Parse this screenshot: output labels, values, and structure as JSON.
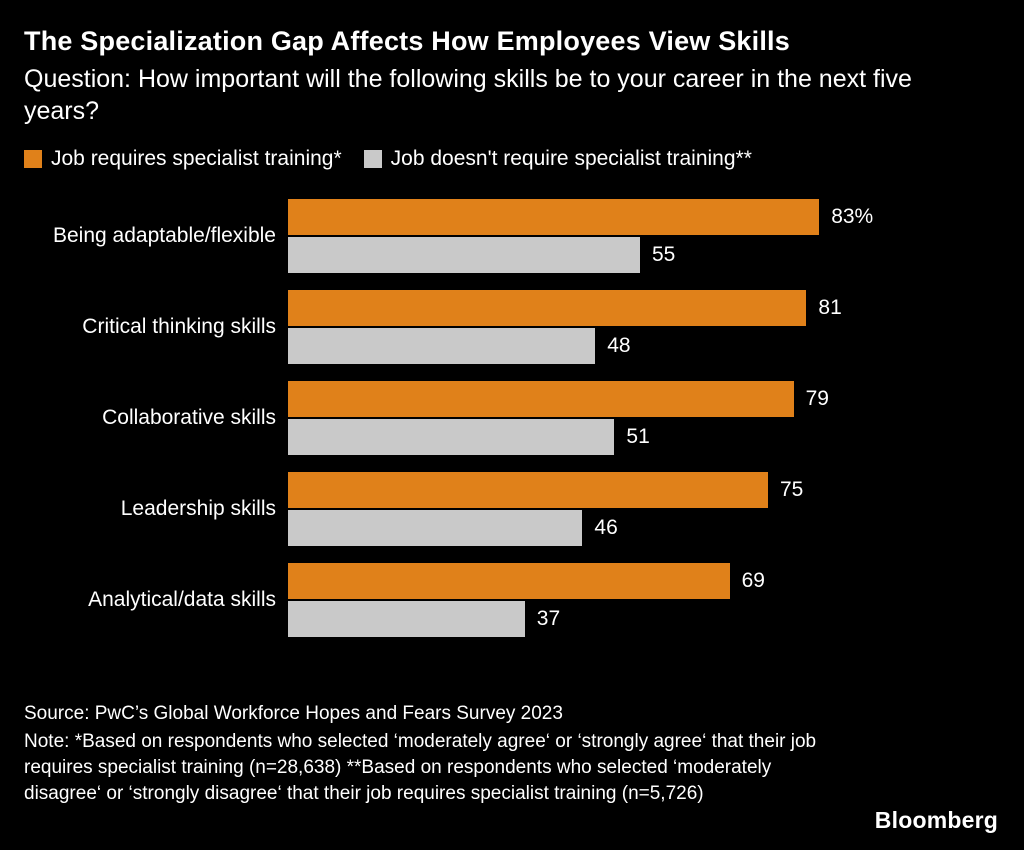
{
  "header": {
    "title": "The Specialization Gap Affects How Employees View Skills",
    "subtitle": "Question: How important will the following skills be to your career in the next five years?"
  },
  "legend": [
    {
      "label": "Job requires specialist training*",
      "color": "#E0811A"
    },
    {
      "label": "Job doesn't require specialist training**",
      "color": "#C9C9C9"
    }
  ],
  "chart_data": {
    "type": "bar",
    "orientation": "horizontal",
    "title": "The Specialization Gap Affects How Employees View Skills",
    "categories": [
      "Being adaptable/flexible",
      "Critical thinking skills",
      "Collaborative skills",
      "Leadership skills",
      "Analytical/data skills"
    ],
    "series": [
      {
        "name": "Job requires specialist training*",
        "color": "#E0811A",
        "values": [
          83,
          81,
          79,
          75,
          69
        ],
        "labels": [
          "83%",
          "81",
          "79",
          "75",
          "69"
        ]
      },
      {
        "name": "Job doesn't require specialist training**",
        "color": "#C9C9C9",
        "values": [
          55,
          48,
          51,
          46,
          37
        ],
        "labels": [
          "55",
          "48",
          "51",
          "46",
          "37"
        ]
      }
    ],
    "xlim": [
      0,
      100
    ],
    "grid": false,
    "legend_position": "top"
  },
  "footer": {
    "source": "Source: PwC’s Global Workforce Hopes and Fears Survey 2023",
    "note": "Note: *Based on respondents who selected ‘moderately agree‘ or ‘strongly agree‘ that their job requires specialist training (n=28,638) **Based on respondents who selected ‘moderately disagree‘ or ‘strongly disagree‘ that their job requires specialist training (n=5,726)",
    "brand": "Bloomberg"
  }
}
